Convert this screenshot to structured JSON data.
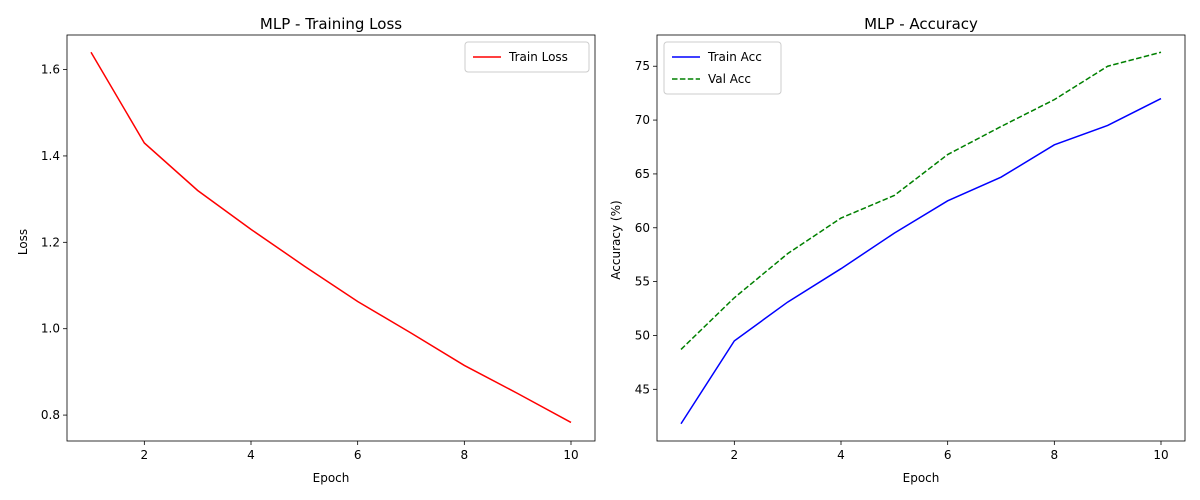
{
  "chart_data": [
    {
      "type": "line",
      "title": "MLP - Training Loss",
      "xlabel": "Epoch",
      "ylabel": "Loss",
      "x": [
        1,
        2,
        3,
        4,
        5,
        6,
        7,
        8,
        9,
        10
      ],
      "xlim": [
        0.55,
        10.45
      ],
      "ylim": [
        0.74,
        1.68
      ],
      "xticks": [
        2,
        4,
        6,
        8,
        10
      ],
      "yticks": [
        0.8,
        1.0,
        1.2,
        1.4,
        1.6
      ],
      "ytick_decimals": 1,
      "grid": false,
      "legend_position": "upper-right",
      "series": [
        {
          "name": "Train Loss",
          "values": [
            1.64,
            1.43,
            1.32,
            1.23,
            1.145,
            1.063,
            0.99,
            0.915,
            0.85,
            0.783
          ],
          "color": "#ff0000",
          "dash": "solid"
        }
      ]
    },
    {
      "type": "line",
      "title": "MLP - Accuracy",
      "xlabel": "Epoch",
      "ylabel": "Accuracy (%)",
      "x": [
        1,
        2,
        3,
        4,
        5,
        6,
        7,
        8,
        9,
        10
      ],
      "xlim": [
        0.55,
        10.45
      ],
      "ylim": [
        40.2,
        77.9
      ],
      "xticks": [
        2,
        4,
        6,
        8,
        10
      ],
      "yticks": [
        45,
        50,
        55,
        60,
        65,
        70,
        75
      ],
      "ytick_decimals": 0,
      "grid": false,
      "legend_position": "upper-left",
      "series": [
        {
          "name": "Train Acc",
          "values": [
            41.8,
            49.5,
            53.1,
            56.2,
            59.5,
            62.5,
            64.7,
            67.7,
            69.5,
            72.0
          ],
          "color": "#0000ff",
          "dash": "solid"
        },
        {
          "name": "Val Acc",
          "values": [
            48.7,
            53.5,
            57.6,
            60.9,
            63.0,
            66.8,
            69.4,
            71.9,
            75.0,
            76.3
          ],
          "color": "#008000",
          "dash": "dashed"
        }
      ]
    }
  ]
}
